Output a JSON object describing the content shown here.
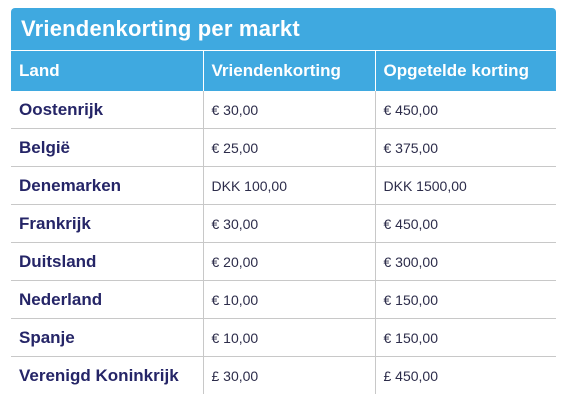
{
  "title": "Vriendenkorting per markt",
  "colors": {
    "header_background": "#3fa9e0",
    "header_text": "#ffffff",
    "land_text": "#252567",
    "grid_line": "#c8c8c8"
  },
  "table": {
    "headers": [
      "Land",
      "Vriendenkorting",
      "Opgetelde korting"
    ],
    "rows": [
      [
        "Oostenrijk",
        "€ 30,00",
        "€ 450,00"
      ],
      [
        "België",
        "€ 25,00",
        "€ 375,00"
      ],
      [
        "Denemarken",
        "DKK 100,00",
        "DKK 1500,00"
      ],
      [
        "Frankrijk",
        "€ 30,00",
        "€ 450,00"
      ],
      [
        "Duitsland",
        "€ 20,00",
        "€ 300,00"
      ],
      [
        "Nederland",
        "€ 10,00",
        "€ 150,00"
      ],
      [
        "Spanje",
        "€ 10,00",
        "€ 150,00"
      ],
      [
        "Verenigd Koninkrijk",
        "£ 30,00",
        "£ 450,00"
      ]
    ]
  }
}
